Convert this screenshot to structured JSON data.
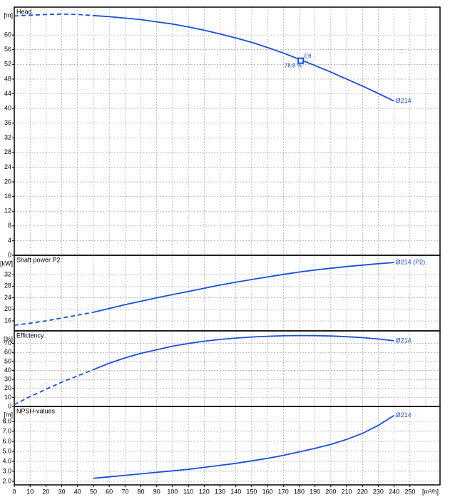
{
  "chart_data": [
    {
      "type": "line",
      "title": "Head",
      "ylabel": "[m]",
      "xlim": [
        0,
        269
      ],
      "xticks": [
        0,
        10,
        20,
        30,
        40,
        50,
        60,
        70,
        80,
        90,
        100,
        110,
        120,
        130,
        140,
        150,
        160,
        170,
        180,
        190,
        200,
        210,
        220,
        230,
        240,
        250,
        260
      ],
      "ylim": [
        0,
        67.6
      ],
      "yticks": [
        0,
        4,
        8,
        12,
        16,
        20,
        24,
        28,
        32,
        36,
        40,
        44,
        48,
        52,
        56,
        60
      ],
      "grid": true,
      "x": [
        0,
        10,
        20,
        30,
        40,
        50,
        60,
        70,
        80,
        90,
        100,
        110,
        120,
        130,
        140,
        150,
        160,
        170,
        180,
        190,
        200,
        210,
        220,
        230,
        240
      ],
      "series": [
        {
          "name": "Ø214",
          "color": "#1a4fd8",
          "dashed_below": 50,
          "values": [
            65.2,
            65.4,
            65.6,
            65.7,
            65.6,
            65.3,
            65.0,
            64.6,
            64.2,
            63.6,
            63.0,
            62.2,
            61.3,
            60.3,
            59.2,
            58.0,
            56.6,
            55.1,
            53.4,
            51.7,
            49.9,
            48.0,
            46.1,
            44.1,
            42.0
          ]
        }
      ],
      "annotations": [
        {
          "text": "Eff",
          "x": 181,
          "y": 53.0,
          "value": 78.8,
          "value_label": "78.8 %"
        }
      ]
    },
    {
      "type": "line",
      "title": "Shaft power P2",
      "ylabel": "[kW]",
      "xlim": [
        0,
        269
      ],
      "xticks": [
        0,
        10,
        20,
        30,
        40,
        50,
        60,
        70,
        80,
        90,
        100,
        110,
        120,
        130,
        140,
        150,
        160,
        170,
        180,
        190,
        200,
        210,
        220,
        230,
        240,
        250,
        260
      ],
      "ylim": [
        12.55,
        38.7
      ],
      "yticks": [
        16,
        20,
        24,
        28,
        32
      ],
      "grid": true,
      "x": [
        0,
        10,
        20,
        30,
        40,
        50,
        60,
        70,
        80,
        90,
        100,
        110,
        120,
        130,
        140,
        150,
        160,
        170,
        180,
        190,
        200,
        210,
        220,
        230,
        240
      ],
      "series": [
        {
          "name": "Ø214 (P2)",
          "color": "#1a4fd8",
          "dashed_below": 50,
          "values": [
            14.5,
            15.2,
            16.0,
            17.0,
            18.0,
            19.0,
            20.3,
            21.6,
            22.8,
            24.0,
            25.1,
            26.2,
            27.3,
            28.4,
            29.4,
            30.3,
            31.2,
            32.1,
            32.9,
            33.6,
            34.2,
            34.8,
            35.3,
            35.8,
            36.2
          ]
        }
      ]
    },
    {
      "type": "line",
      "title": "Efficiency",
      "ylabel": "[%]",
      "xlim": [
        0,
        269
      ],
      "xticks": [
        0,
        10,
        20,
        30,
        40,
        50,
        60,
        70,
        80,
        90,
        100,
        110,
        120,
        130,
        140,
        150,
        160,
        170,
        180,
        190,
        200,
        210,
        220,
        230,
        240,
        250,
        260
      ],
      "ylim": [
        0,
        84
      ],
      "yticks": [
        0,
        10,
        20,
        30,
        40,
        50,
        60,
        70
      ],
      "grid": true,
      "x": [
        0,
        10,
        20,
        30,
        40,
        50,
        60,
        70,
        80,
        90,
        100,
        110,
        120,
        130,
        140,
        150,
        160,
        170,
        180,
        190,
        200,
        210,
        220,
        230,
        240
      ],
      "series": [
        {
          "name": "Ø214",
          "color": "#1a4fd8",
          "dashed_below": 50,
          "values": [
            2,
            11,
            19,
            27,
            34,
            41,
            48,
            54,
            59,
            63,
            67,
            70,
            72.5,
            74.5,
            76,
            77.2,
            78,
            78.5,
            78.8,
            78.7,
            78.3,
            77.5,
            76.5,
            75,
            73
          ]
        }
      ]
    },
    {
      "type": "line",
      "title": "NPSH-values",
      "ylabel": "[m]",
      "xlabel": "[m³/h]",
      "xlim": [
        0,
        269
      ],
      "xticks": [
        0,
        10,
        20,
        30,
        40,
        50,
        60,
        70,
        80,
        90,
        100,
        110,
        120,
        130,
        140,
        150,
        160,
        170,
        180,
        190,
        200,
        210,
        220,
        230,
        240,
        250
      ],
      "ylim": [
        1.64,
        9.5
      ],
      "yticks": [
        {
          "value": 2,
          "label": "2.0"
        },
        {
          "value": 3,
          "label": "3.0"
        },
        {
          "value": 4,
          "label": "4.0"
        },
        {
          "value": 5,
          "label": "5.0"
        },
        {
          "value": 6,
          "label": "6.0"
        },
        {
          "value": 7,
          "label": "7.0"
        },
        {
          "value": 8,
          "label": "8.0"
        }
      ],
      "grid": true,
      "x": [
        50,
        60,
        70,
        80,
        90,
        100,
        110,
        120,
        130,
        140,
        150,
        160,
        170,
        180,
        190,
        200,
        210,
        220,
        230,
        240
      ],
      "series": [
        {
          "name": "Ø214",
          "color": "#1a4fd8",
          "values": [
            2.3,
            2.45,
            2.6,
            2.75,
            2.9,
            3.05,
            3.2,
            3.4,
            3.6,
            3.8,
            4.05,
            4.3,
            4.6,
            4.95,
            5.3,
            5.7,
            6.2,
            6.8,
            7.6,
            8.6
          ]
        }
      ]
    }
  ]
}
